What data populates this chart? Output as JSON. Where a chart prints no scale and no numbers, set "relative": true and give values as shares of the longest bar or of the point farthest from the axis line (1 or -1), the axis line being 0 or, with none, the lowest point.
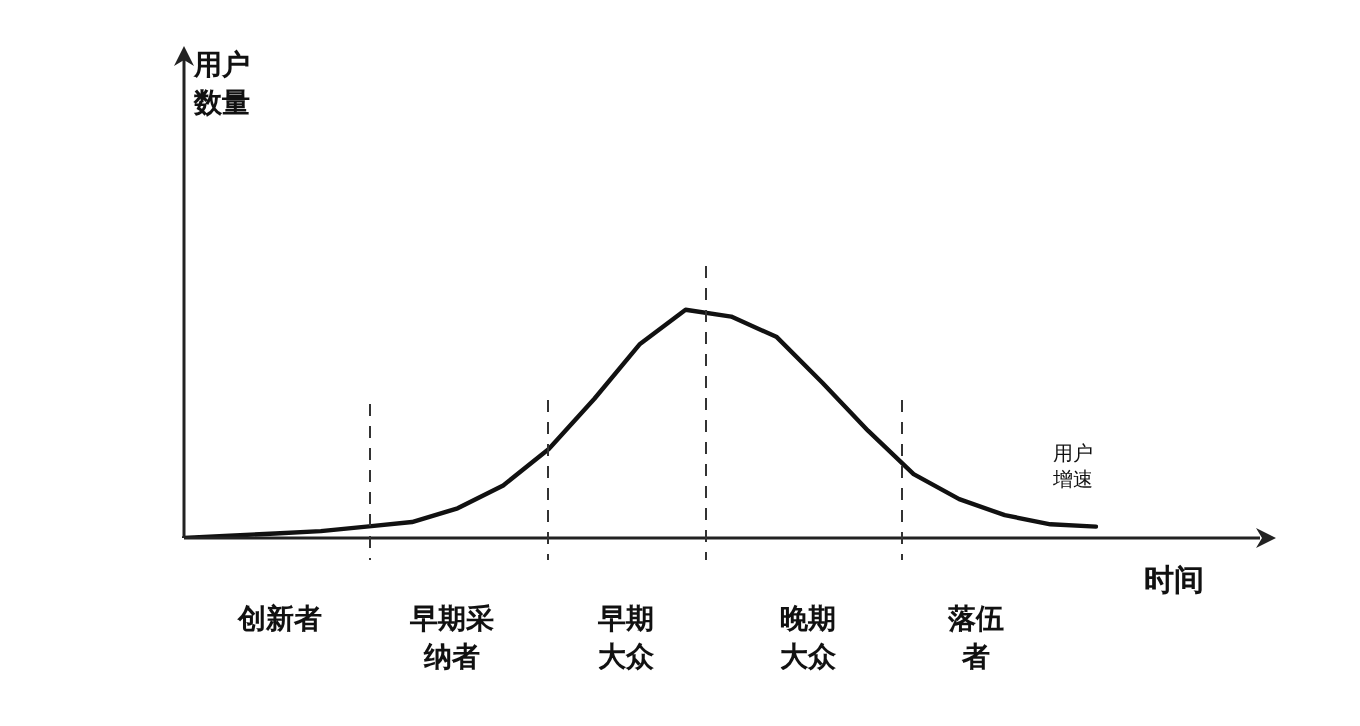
{
  "chart_data": {
    "type": "line",
    "relative": true,
    "xlabel": "时间",
    "legend": false,
    "marker": "none",
    "line_style": "solid",
    "categories": [
      null,
      null,
      null,
      null,
      null,
      null,
      null,
      null,
      null,
      null,
      null,
      null,
      null,
      null,
      null,
      null,
      null,
      null,
      null,
      null,
      null
    ],
    "series": [
      {
        "name": "用户增速",
        "color": "#111111",
        "values": [
          0,
          0.01,
          0.02,
          0.03,
          0.05,
          0.07,
          0.13,
          0.23,
          0.39,
          0.61,
          0.85,
          1,
          0.97,
          0.88,
          0.68,
          0.47,
          0.28,
          0.17,
          0.1,
          0.06,
          0.05
        ]
      }
    ],
    "annotations": [
      "创新者",
      "早期采纳者",
      "早期大众",
      "晚期大众",
      "落伍者",
      "用户数量"
    ]
  }
}
